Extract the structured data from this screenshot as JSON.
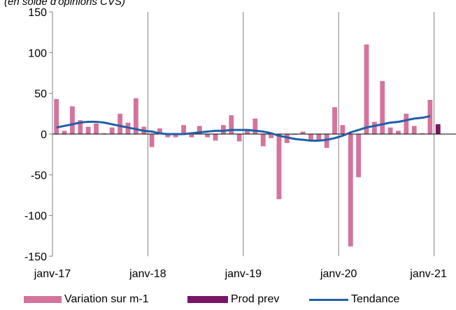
{
  "subtitle": "(en solde d'opinions CVS)",
  "colors": {
    "variation": "#d4739c",
    "prod_prev": "#7a1466",
    "tendance": "#1f5fa8",
    "axis": "#808080"
  },
  "chart_data": {
    "type": "bar",
    "title": "",
    "subtitle": "(en solde d'opinions CVS)",
    "xlabel": "",
    "ylabel": "",
    "ylim": [
      -150,
      150
    ],
    "yticks": [
      -150,
      -100,
      -50,
      0,
      50,
      100,
      150
    ],
    "xtick_labels": [
      "janv-17",
      "janv-18",
      "janv-19",
      "janv-20",
      "janv-21"
    ],
    "grid": "vertical lines at each January",
    "legend_position": "bottom",
    "months": [
      "2017-01",
      "2017-02",
      "2017-03",
      "2017-04",
      "2017-05",
      "2017-06",
      "2017-07",
      "2017-08",
      "2017-09",
      "2017-10",
      "2017-11",
      "2017-12",
      "2018-01",
      "2018-02",
      "2018-03",
      "2018-04",
      "2018-05",
      "2018-06",
      "2018-07",
      "2018-08",
      "2018-09",
      "2018-10",
      "2018-11",
      "2018-12",
      "2019-01",
      "2019-02",
      "2019-03",
      "2019-04",
      "2019-05",
      "2019-06",
      "2019-07",
      "2019-08",
      "2019-09",
      "2019-10",
      "2019-11",
      "2019-12",
      "2020-01",
      "2020-02",
      "2020-03",
      "2020-04",
      "2020-05",
      "2020-06",
      "2020-07",
      "2020-08",
      "2020-09",
      "2020-10",
      "2020-11",
      "2020-12",
      "2021-01"
    ],
    "series": [
      {
        "name": "Variation sur m-1",
        "kind": "bar",
        "values": [
          43,
          4,
          34,
          17,
          9,
          13,
          1,
          8,
          25,
          14,
          44,
          9,
          -16,
          7,
          -4,
          -4,
          11,
          -4,
          10,
          -4,
          -8,
          11,
          23,
          -9,
          6,
          19,
          -15,
          -5,
          -80,
          -11,
          -1,
          3,
          -9,
          -7,
          -17,
          33,
          11,
          -138,
          -53,
          110,
          15,
          65,
          8,
          4,
          25,
          10,
          1,
          42,
          null
        ]
      },
      {
        "name": "Prod prev",
        "kind": "bar",
        "values": [
          null,
          null,
          null,
          null,
          null,
          null,
          null,
          null,
          null,
          null,
          null,
          null,
          null,
          null,
          null,
          null,
          null,
          null,
          null,
          null,
          null,
          null,
          null,
          null,
          null,
          null,
          null,
          null,
          null,
          null,
          null,
          null,
          null,
          null,
          null,
          null,
          null,
          null,
          null,
          null,
          null,
          null,
          null,
          null,
          null,
          null,
          null,
          null,
          12
        ]
      },
      {
        "name": "Tendance",
        "kind": "line",
        "values": [
          8,
          10,
          12,
          14,
          15,
          15,
          14,
          12,
          10,
          8,
          6,
          4,
          3,
          1,
          0,
          0,
          0,
          1,
          2,
          3,
          4,
          4,
          5,
          5,
          5,
          4,
          3,
          1,
          -2,
          -4,
          -6,
          -7,
          -8,
          -8,
          -7,
          -5,
          -2,
          2,
          5,
          8,
          10,
          12,
          14,
          15,
          17,
          19,
          20,
          22,
          null
        ]
      }
    ]
  },
  "legend": [
    {
      "label": "Variation sur m-1",
      "type": "bar",
      "color": "#d4739c"
    },
    {
      "label": "Prod prev",
      "type": "bar",
      "color": "#7a1466"
    },
    {
      "label": "Tendance",
      "type": "line",
      "color": "#1f5fa8"
    }
  ]
}
